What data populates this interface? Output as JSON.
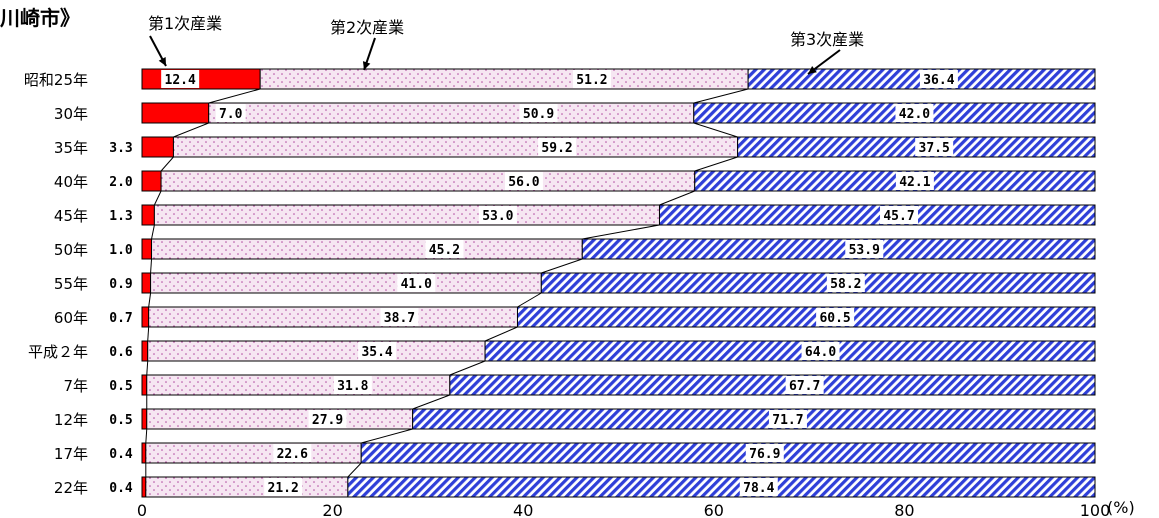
{
  "title": "川崎市》",
  "unit": "(%)",
  "colors": {
    "primary": "#ff0000",
    "secondary": "#f6e6f2",
    "tertiary": "#2f3fd8",
    "border": "#000000"
  },
  "chart_data": {
    "type": "bar",
    "stacked": true,
    "orientation": "horizontal",
    "categories": [
      "昭和25年",
      "30年",
      "35年",
      "40年",
      "45年",
      "50年",
      "55年",
      "60年",
      "平成２年",
      "7年",
      "12年",
      "17年",
      "22年"
    ],
    "series": [
      {
        "name": "第1次産業",
        "values": [
          12.4,
          7.0,
          3.3,
          2.0,
          1.3,
          1.0,
          0.9,
          0.7,
          0.6,
          0.5,
          0.5,
          0.4,
          0.4
        ],
        "labels": [
          "12.4",
          "7.0",
          "3.3",
          "2.0",
          "1.3",
          "1.0",
          "0.9",
          "0.7",
          "0.6",
          "0.5",
          "0.5",
          "0.4",
          "0.4"
        ]
      },
      {
        "name": "第2次産業",
        "values": [
          51.2,
          50.9,
          59.2,
          56.0,
          53.0,
          45.2,
          41.0,
          38.7,
          35.4,
          31.8,
          27.9,
          22.6,
          21.2
        ],
        "labels": [
          "51.2",
          "50.9",
          "59.2",
          "56.0",
          "53.0",
          "45.2",
          "41.0",
          "38.7",
          "35.4",
          "31.8",
          "27.9",
          "22.6",
          "21.2"
        ]
      },
      {
        "name": "第3次産業",
        "values": [
          36.4,
          42.0,
          37.5,
          42.1,
          45.7,
          53.9,
          58.2,
          60.5,
          64.0,
          67.7,
          71.7,
          76.9,
          78.4
        ],
        "labels": [
          "36.4",
          "42.0",
          "37.5",
          "42.1",
          "45.7",
          "53.9",
          "58.2",
          "60.5",
          "64.0",
          "67.7",
          "71.7",
          "76.9",
          "78.4"
        ]
      }
    ],
    "xlim": [
      0,
      100
    ],
    "xticks": [
      "0",
      "20",
      "40",
      "60",
      "80",
      "100"
    ],
    "grid": false
  }
}
